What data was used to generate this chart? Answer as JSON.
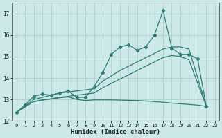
{
  "xlabel": "Humidex (Indice chaleur)",
  "line_color": "#2e7d72",
  "bg_color": "#cce8e8",
  "grid_color": "#aacccc",
  "ylim": [
    12,
    17.5
  ],
  "xlim": [
    -0.5,
    23.5
  ],
  "yticks": [
    12,
    13,
    14,
    15,
    16,
    17
  ],
  "xticks": [
    0,
    1,
    2,
    3,
    4,
    5,
    6,
    7,
    8,
    9,
    10,
    11,
    12,
    13,
    14,
    15,
    16,
    17,
    18,
    19,
    20,
    21,
    22,
    23
  ],
  "main_x": [
    0,
    1,
    2,
    3,
    4,
    5,
    6,
    7,
    8,
    9,
    10,
    11,
    12,
    13,
    14,
    15,
    16,
    17,
    18,
    19,
    20,
    21,
    22
  ],
  "main_y": [
    12.4,
    12.75,
    13.15,
    13.25,
    13.2,
    13.3,
    13.4,
    13.1,
    13.1,
    13.6,
    14.25,
    15.1,
    15.45,
    15.55,
    15.3,
    15.45,
    16.0,
    17.15,
    15.4,
    15.1,
    15.1,
    14.9,
    12.7
  ],
  "upper_x": [
    0,
    2,
    5,
    9,
    10,
    11,
    12,
    13,
    14,
    15,
    16,
    17,
    18,
    19,
    20,
    22
  ],
  "upper_y": [
    12.4,
    13.0,
    13.3,
    13.5,
    13.85,
    14.1,
    14.35,
    14.55,
    14.75,
    14.95,
    15.15,
    15.35,
    15.45,
    15.45,
    15.35,
    12.7
  ],
  "mid_x": [
    0,
    2,
    5,
    9,
    10,
    11,
    12,
    13,
    14,
    15,
    16,
    17,
    18,
    19,
    20,
    22
  ],
  "mid_y": [
    12.4,
    12.9,
    13.1,
    13.3,
    13.55,
    13.75,
    13.95,
    14.15,
    14.35,
    14.55,
    14.75,
    14.95,
    15.05,
    15.0,
    14.85,
    12.7
  ],
  "lower_x": [
    0,
    1,
    2,
    3,
    4,
    5,
    6,
    7,
    8,
    9,
    10,
    11,
    12,
    13,
    14,
    15,
    16,
    17,
    18,
    19,
    20,
    21,
    22
  ],
  "lower_y": [
    12.4,
    12.72,
    12.9,
    12.98,
    13.02,
    13.08,
    13.12,
    13.0,
    12.95,
    12.98,
    12.98,
    12.98,
    12.97,
    12.96,
    12.95,
    12.93,
    12.9,
    12.87,
    12.83,
    12.8,
    12.77,
    12.74,
    12.68
  ]
}
